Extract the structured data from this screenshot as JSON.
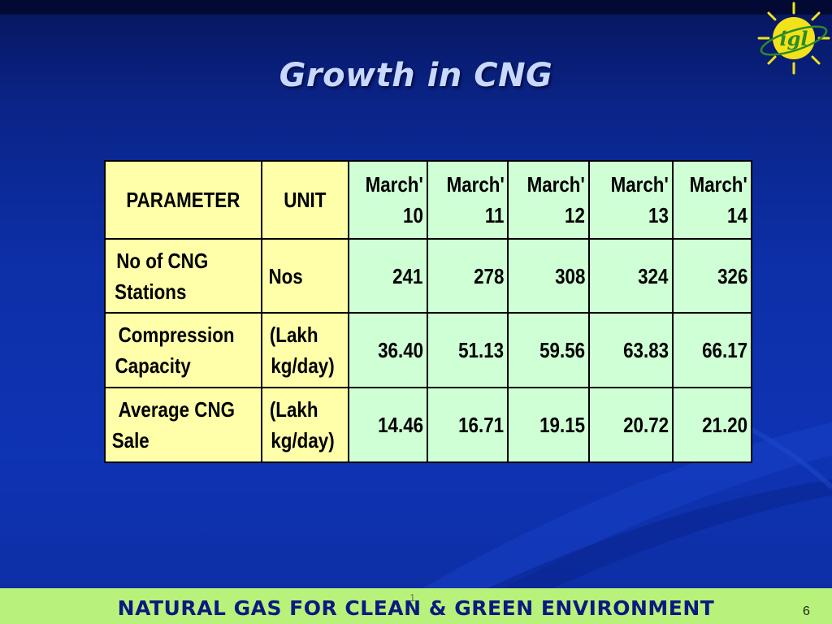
{
  "slide": {
    "title": "Growth in CNG",
    "logo_text": "igl",
    "footer": "NATURAL GAS FOR CLEAN & GREEN ENVIRONMENT",
    "footer_mark": "1",
    "page_number": "6"
  },
  "colors": {
    "background": "#0d2fa8",
    "title": "#c9d8ff",
    "header_yellow": "#ffffaa",
    "value_green": "#cfffd4",
    "footer_bar": "#b9f27a",
    "footer_text": "#0a1a80",
    "logo_sun": "#f2e21a",
    "logo_ring": "#2d8a2a"
  },
  "chart_data": {
    "type": "table",
    "columns": {
      "parameter": "PARAMETER",
      "unit": "UNIT",
      "periods": [
        {
          "line1": "March'",
          "line2": "10"
        },
        {
          "line1": "March'",
          "line2": "11"
        },
        {
          "line1": "March'",
          "line2": "12"
        },
        {
          "line1": "March'",
          "line2": "13"
        },
        {
          "line1": "March'",
          "line2": "14"
        }
      ]
    },
    "rows": [
      {
        "parameter": {
          "line1": "No of CNG",
          "line2": "Stations"
        },
        "unit": {
          "line1": "Nos",
          "line2": ""
        },
        "values": [
          "241",
          "278",
          "308",
          "324",
          "326"
        ]
      },
      {
        "parameter": {
          "line1": "Compression",
          "line2": "Capacity"
        },
        "unit": {
          "line1": "(Lakh",
          "line2": "kg/day)"
        },
        "values": [
          "36.40",
          "51.13",
          "59.56",
          "63.83",
          "66.17"
        ]
      },
      {
        "parameter": {
          "line1": "Average CNG",
          "line2": "Sale"
        },
        "unit": {
          "line1": "(Lakh",
          "line2": "kg/day)"
        },
        "values": [
          "14.46",
          "16.71",
          "19.15",
          "20.72",
          "21.20"
        ]
      }
    ]
  }
}
